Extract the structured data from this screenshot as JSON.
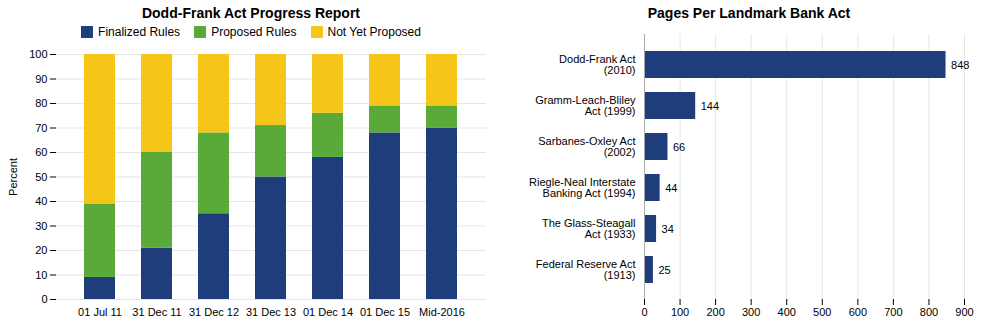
{
  "chart_data": [
    {
      "type": "bar",
      "title": "Dodd-Frank Act Progress Report",
      "categories": [
        "01 Jul 11",
        "31 Dec 11",
        "31 Dec 12",
        "31 Dec 13",
        "01 Dec 14",
        "01 Dec 15",
        "Mid-2016"
      ],
      "series": [
        {
          "name": "Finalized Rules",
          "color": "#1f3d7a",
          "values": [
            9,
            21,
            35,
            50,
            58,
            68,
            70
          ]
        },
        {
          "name": "Proposed Rules",
          "color": "#5aaa3a",
          "values": [
            30,
            39,
            33,
            21,
            18,
            11,
            9
          ]
        },
        {
          "name": "Not Yet Proposed",
          "color": "#f5c518",
          "values": [
            61,
            40,
            32,
            29,
            24,
            21,
            21
          ]
        }
      ],
      "y_label": "Percent",
      "ylim": [
        0,
        100
      ],
      "yticks": [
        0,
        10,
        20,
        30,
        40,
        50,
        60,
        70,
        80,
        90,
        100
      ],
      "grid": true,
      "stacked": true,
      "legend": "top"
    },
    {
      "type": "bar",
      "orientation": "horizontal",
      "title": "Pages Per Landmark Bank Act",
      "categories": [
        "Dodd-Frank Act\n(2010)",
        "Gramm-Leach-Bliley\nAct (1999)",
        "Sarbanes-Oxley Act\n(2002)",
        "Riegle-Neal Interstate\nBanking Act (1994)",
        "The Glass-Steagall\nAct (1933)",
        "Federal Reserve Act\n(1913)"
      ],
      "values": [
        848,
        144,
        66,
        44,
        34,
        25
      ],
      "color": "#1f3d7a",
      "xlim": [
        0,
        900
      ],
      "xticks": [
        0,
        100,
        200,
        300,
        400,
        500,
        600,
        700,
        800,
        900
      ],
      "grid": true,
      "data_labels": true
    }
  ]
}
